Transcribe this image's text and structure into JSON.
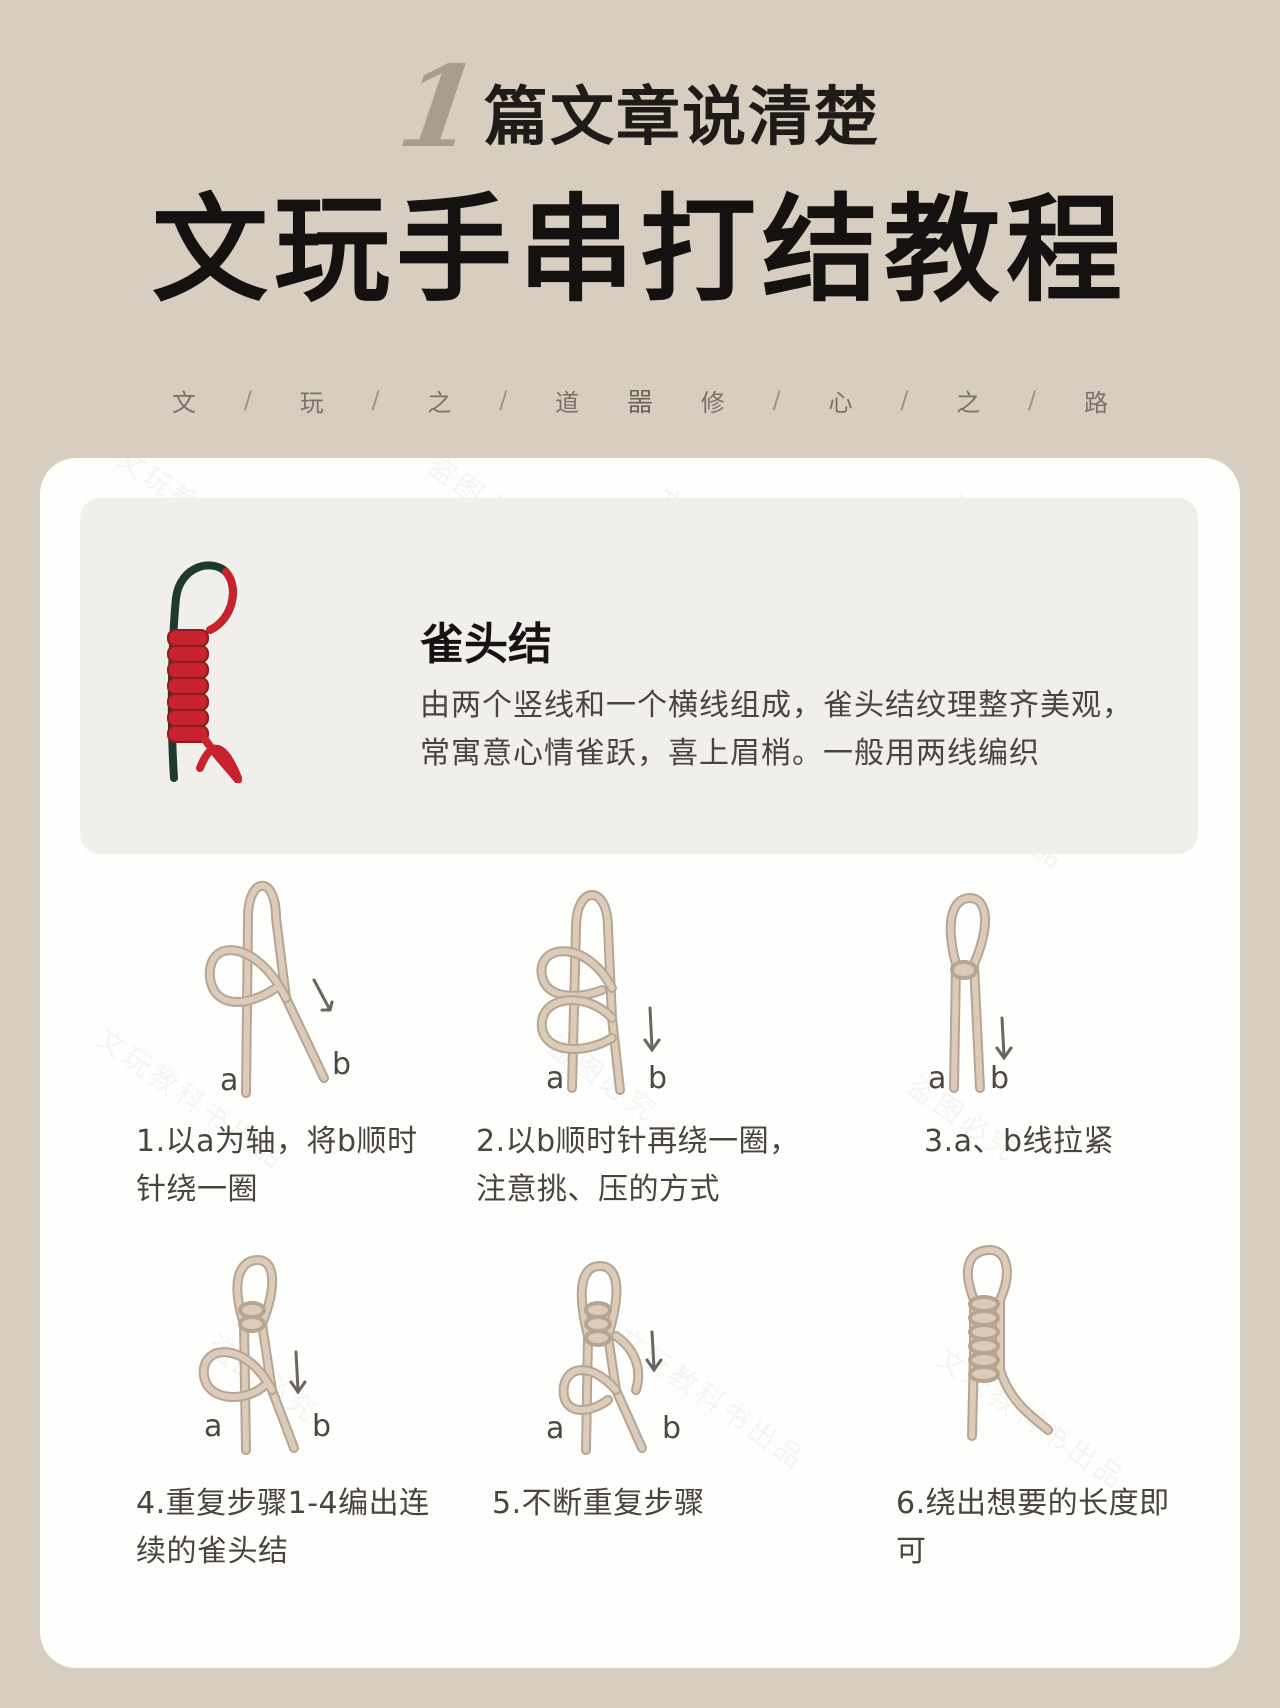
{
  "header": {
    "number": "1",
    "subtitle": "篇文章说清楚",
    "title": "文玩手串打结教程",
    "tagline_left": [
      "文",
      "/",
      "玩",
      "/",
      "之",
      "/",
      "道"
    ],
    "tagline_mark": "噐",
    "tagline_right": [
      "修",
      "/",
      "心",
      "/",
      "之",
      "/",
      "路"
    ]
  },
  "intro": {
    "title": "雀头结",
    "description": "由两个竖线和一个横线组成，雀头结纹理整齐美观，常寓意心情雀跃，喜上眉梢。一般用两线编织"
  },
  "labels": {
    "a": "a",
    "b": "b"
  },
  "steps": [
    {
      "text": "1.以a为轴，将b顺时针绕一圈"
    },
    {
      "text": "2.以b顺时针再绕一圈，注意挑、压的方式"
    },
    {
      "text": "3.a、b线拉紧"
    },
    {
      "text": "4.重复步骤1-4编出连续的雀头结"
    },
    {
      "text": "5.不断重复步骤"
    },
    {
      "text": "6.绕出想要的长度即可"
    }
  ],
  "watermark": [
    "文玩教科书出品",
    "盗图必究"
  ],
  "colors": {
    "background": "#d8cebf",
    "card": "#fefefd",
    "cord": "#d8c7b6",
    "cord_outline": "#b7a594",
    "red_cord": "#c8232c",
    "green_cord": "#1f3a2d"
  }
}
